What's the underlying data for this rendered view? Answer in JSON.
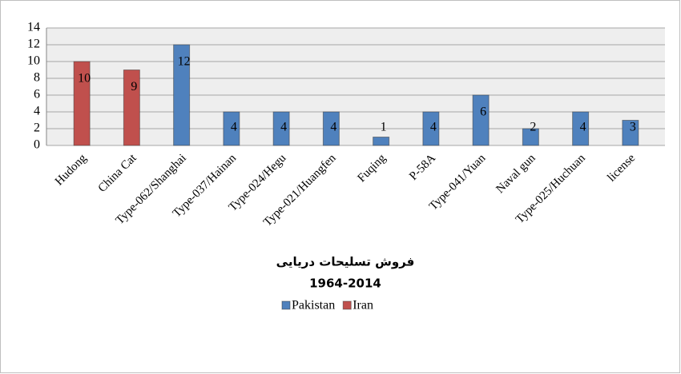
{
  "chart_data": {
    "type": "bar",
    "title": "فروش تسلیحات دریایی",
    "subtitle": "1964-2014",
    "categories": [
      "Hudong",
      "China Cat",
      "Type-062/Shanghai",
      "Type-037/Hainan",
      "Type-024/Hegu",
      "Type-021/Huangfen",
      "Fuqing",
      "P-58A",
      "Type-041/Yuan",
      "Naval gun",
      "Type-025/Huchuan",
      "license"
    ],
    "series": [
      {
        "name": "Pakistan",
        "color": "#4f81bd",
        "values": [
          null,
          null,
          12,
          4,
          4,
          4,
          1,
          4,
          6,
          2,
          4,
          3
        ]
      },
      {
        "name": "Iran",
        "color": "#c0504d",
        "values": [
          10,
          9,
          null,
          null,
          null,
          null,
          null,
          null,
          null,
          null,
          null,
          null
        ]
      }
    ],
    "ylim": [
      0,
      14
    ],
    "yticks": [
      0,
      2,
      4,
      6,
      8,
      10,
      12,
      14
    ],
    "grid": true,
    "legend": "bottom"
  }
}
